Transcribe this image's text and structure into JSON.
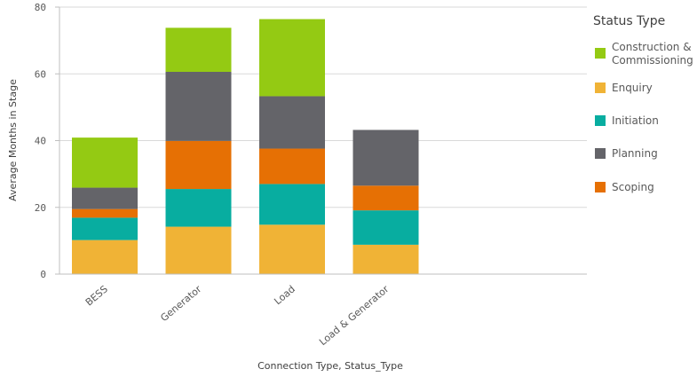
{
  "chart_data": {
    "type": "bar",
    "stacked": true,
    "title": "",
    "xlabel": "Connection Type, Status_Type",
    "ylabel": "Average Months in Stage",
    "ylim": [
      0,
      80
    ],
    "yticks": [
      "0",
      "20",
      "40",
      "60",
      "80"
    ],
    "grid": true,
    "legend_position": "right",
    "legend_title": "Status Type",
    "categories": [
      "BESS",
      "Generator",
      "Load",
      "Load & Generator"
    ],
    "series": [
      {
        "name": "Enquiry",
        "color": "#f0b336",
        "values": [
          10.2,
          14.2,
          14.8,
          8.8
        ]
      },
      {
        "name": "Initiation",
        "color": "#08ada0",
        "values": [
          6.7,
          11.3,
          12.2,
          10.3
        ]
      },
      {
        "name": "Scoping",
        "color": "#e67004",
        "values": [
          2.6,
          14.4,
          10.6,
          7.4
        ]
      },
      {
        "name": "Planning",
        "color": "#646469",
        "values": [
          6.4,
          20.7,
          15.7,
          16.7
        ]
      },
      {
        "name": "Construction & Commissioning",
        "color": "#94ca13",
        "values": [
          15.0,
          13.2,
          23.1,
          0
        ]
      }
    ],
    "legend_order": [
      "Construction & Commissioning",
      "Enquiry",
      "Initiation",
      "Planning",
      "Scoping"
    ]
  }
}
